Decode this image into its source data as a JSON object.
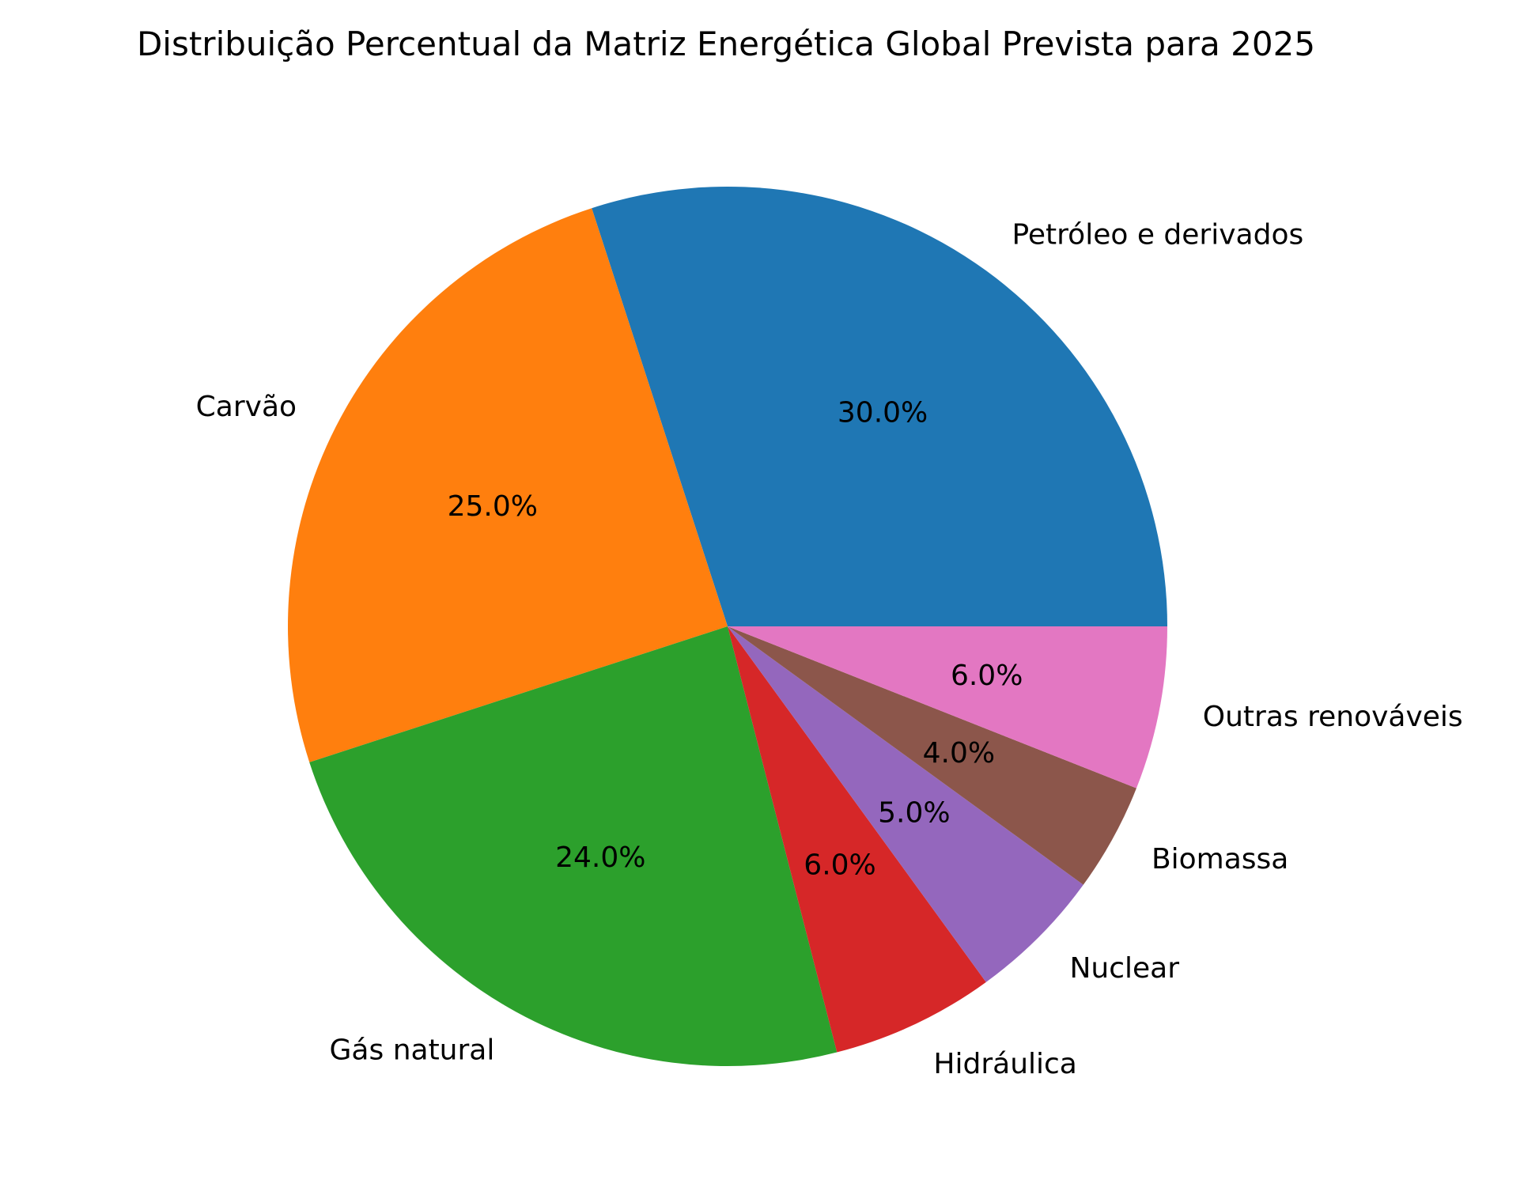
{
  "chart_data": {
    "type": "pie",
    "title": "Distribuição Percentual da Matriz Energética Global Prevista para 2025",
    "start_angle_deg": 0,
    "direction": "counterclockwise",
    "slices": [
      {
        "label": "Petróleo e derivados",
        "value": 30.0,
        "pct_text": "30.0%",
        "color": "#1f77b4"
      },
      {
        "label": "Carvão",
        "value": 25.0,
        "pct_text": "25.0%",
        "color": "#ff7f0e"
      },
      {
        "label": "Gás natural",
        "value": 24.0,
        "pct_text": "24.0%",
        "color": "#2ca02c"
      },
      {
        "label": "Hidráulica",
        "value": 6.0,
        "pct_text": "6.0%",
        "color": "#d62728"
      },
      {
        "label": "Nuclear",
        "value": 5.0,
        "pct_text": "5.0%",
        "color": "#9467bd"
      },
      {
        "label": "Biomassa",
        "value": 4.0,
        "pct_text": "4.0%",
        "color": "#8c564b"
      },
      {
        "label": "Outras renováveis",
        "value": 6.0,
        "pct_text": "6.0%",
        "color": "#e377c2"
      }
    ]
  }
}
